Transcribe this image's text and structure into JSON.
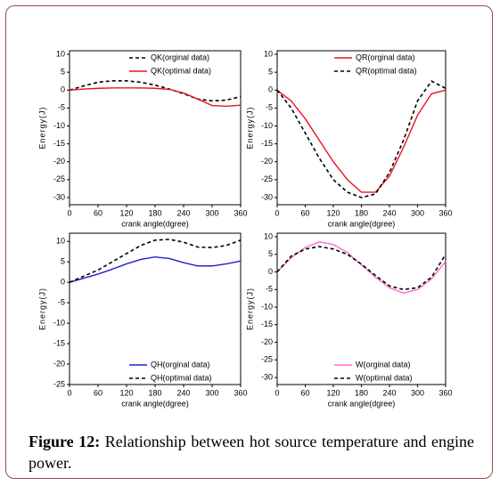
{
  "chart_data": [
    {
      "type": "line",
      "xlabel": "crank angle(dgree)",
      "ylabel": "Energy(J)",
      "x": [
        0,
        30,
        60,
        90,
        120,
        150,
        180,
        210,
        240,
        270,
        300,
        330,
        360
      ],
      "xlim": [
        0,
        360
      ],
      "xticks": [
        0,
        60,
        120,
        180,
        240,
        300,
        360
      ],
      "ylim": [
        -32,
        11
      ],
      "yticks": [
        10,
        5,
        0,
        -5,
        -10,
        -15,
        -20,
        -25,
        -30
      ],
      "legend": "upper right",
      "series": [
        {
          "name": "QK(orginal data)",
          "color": "#000000",
          "dashed": true,
          "values": [
            0,
            1.2,
            2.2,
            2.6,
            2.6,
            2.2,
            1.4,
            0.3,
            -1,
            -2.5,
            -3,
            -2.8,
            -1.8
          ]
        },
        {
          "name": "QK(optimal data)",
          "color": "#e8141e",
          "dashed": false,
          "values": [
            0,
            0.3,
            0.5,
            0.6,
            0.6,
            0.6,
            0.5,
            0.2,
            -0.8,
            -2.5,
            -4.3,
            -4.5,
            -4.2
          ]
        }
      ]
    },
    {
      "type": "line",
      "xlabel": "crank angle(dgree)",
      "ylabel": "Energy(J)",
      "x": [
        0,
        30,
        60,
        90,
        120,
        150,
        180,
        210,
        240,
        270,
        300,
        330,
        360
      ],
      "xlim": [
        0,
        360
      ],
      "xticks": [
        0,
        60,
        120,
        180,
        240,
        300,
        360
      ],
      "ylim": [
        -32,
        11
      ],
      "yticks": [
        10,
        5,
        0,
        -5,
        -10,
        -15,
        -20,
        -25,
        -30
      ],
      "legend": "upper right",
      "series": [
        {
          "name": "QR(orginal data)",
          "color": "#e8141e",
          "dashed": false,
          "values": [
            0,
            -3,
            -8,
            -14,
            -20,
            -25,
            -28.5,
            -28.5,
            -24,
            -16,
            -7,
            -1,
            0
          ]
        },
        {
          "name": "QR(optimal data)",
          "color": "#000000",
          "dashed": true,
          "values": [
            0,
            -5,
            -12,
            -19,
            -25,
            -28.5,
            -30,
            -29,
            -23,
            -14,
            -3,
            2.5,
            0.5
          ]
        }
      ]
    },
    {
      "type": "line",
      "xlabel": "crank angle(dgree)",
      "ylabel": "Energy(J)",
      "x": [
        0,
        30,
        60,
        90,
        120,
        150,
        180,
        210,
        240,
        270,
        300,
        330,
        360
      ],
      "xlim": [
        0,
        360
      ],
      "xticks": [
        0,
        60,
        120,
        180,
        240,
        300,
        360
      ],
      "ylim": [
        -25,
        12
      ],
      "yticks": [
        10,
        5,
        0,
        -5,
        -10,
        -15,
        -20,
        -25
      ],
      "legend": "lower right",
      "series": [
        {
          "name": "QH(orginal data)",
          "color": "#1f1fd0",
          "dashed": false,
          "values": [
            0,
            1,
            2,
            3.2,
            4.5,
            5.6,
            6.2,
            5.8,
            4.8,
            4,
            4,
            4.5,
            5.2
          ]
        },
        {
          "name": "QH(optimal data)",
          "color": "#000000",
          "dashed": true,
          "values": [
            0,
            1.5,
            3,
            5,
            7,
            9,
            10.3,
            10.5,
            9.8,
            8.6,
            8.5,
            9,
            10.3
          ]
        }
      ]
    },
    {
      "type": "line",
      "xlabel": "crank angle(dgree)",
      "ylabel": "Energy(J)",
      "x": [
        0,
        30,
        60,
        90,
        120,
        150,
        180,
        210,
        240,
        270,
        300,
        330,
        360
      ],
      "xlim": [
        0,
        360
      ],
      "xticks": [
        0,
        60,
        120,
        180,
        240,
        300,
        360
      ],
      "ylim": [
        -32,
        11
      ],
      "yticks": [
        10,
        5,
        0,
        -5,
        -10,
        -15,
        -20,
        -25,
        -30
      ],
      "legend": "lower right",
      "series": [
        {
          "name": "W(orginal data)",
          "color": "#ff6ec7",
          "dashed": false,
          "values": [
            0,
            4,
            7,
            8.5,
            7.8,
            5.5,
            2,
            -1.5,
            -4.5,
            -6,
            -5,
            -2,
            3
          ]
        },
        {
          "name": "W(optimal data)",
          "color": "#000000",
          "dashed": true,
          "values": [
            0,
            4.5,
            6.5,
            7.2,
            6.5,
            5,
            2.2,
            -1,
            -4,
            -5,
            -4.5,
            -1.5,
            5
          ]
        }
      ]
    }
  ],
  "caption": {
    "label": "Figure 12:",
    "text": "Relationship between hot source temperature and engine power."
  }
}
